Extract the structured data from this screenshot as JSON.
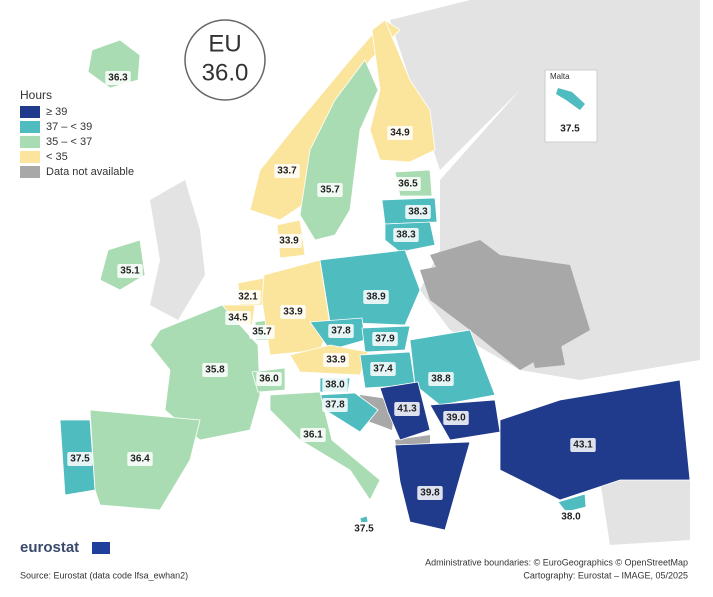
{
  "title": "EU",
  "eu_value": {
    "value": 36,
    "label": "36.0"
  },
  "legend": {
    "title": "Hours",
    "items": [
      {
        "label": "≥ 39",
        "color": "#213b8c"
      },
      {
        "label": "37 – < 39",
        "color": "#4fbcc0"
      },
      {
        "label": "35 – < 37",
        "color": "#a9dcb2"
      },
      {
        "label": "< 35",
        "color": "#fbe59c"
      },
      {
        "label": "Data not available",
        "color": "#a8a8a8"
      }
    ]
  },
  "regions": [
    {
      "value": 36.3,
      "color": "#a9dcb2"
    },
    {
      "value": 33.7,
      "color": "#fbe59c"
    },
    {
      "value": 35.7,
      "color": "#a9dcb2"
    },
    {
      "value": 34.9,
      "color": "#fbe59c"
    },
    {
      "value": 36.5,
      "color": "#a9dcb2"
    },
    {
      "value": 38.3,
      "color": "#4fbcc0"
    },
    {
      "value": 38.3,
      "color": "#4fbcc0"
    },
    {
      "value": 33.9,
      "color": "#fbe59c"
    },
    {
      "value": 35.1,
      "color": "#a9dcb2"
    },
    {
      "value": 32.1,
      "color": "#fbe59c"
    },
    {
      "value": 34.5,
      "color": "#fbe59c"
    },
    {
      "value": 35.7,
      "color": "#a9dcb2"
    },
    {
      "value": 33.9,
      "color": "#fbe59c"
    },
    {
      "value": 38.9,
      "color": "#4fbcc0"
    },
    {
      "value": 37.8,
      "color": "#4fbcc0"
    },
    {
      "value": 37.9,
      "color": "#4fbcc0"
    },
    {
      "value": 33.9,
      "color": "#fbe59c"
    },
    {
      "value": 37.4,
      "color": "#4fbcc0"
    },
    {
      "value": 38.8,
      "color": "#4fbcc0"
    },
    {
      "value": 35.8,
      "color": "#a9dcb2"
    },
    {
      "value": 36,
      "label": "36.0",
      "color": "#a9dcb2"
    },
    {
      "value": 38,
      "label": "38.0",
      "color": "#4fbcc0"
    },
    {
      "value": 37.8,
      "color": "#4fbcc0"
    },
    {
      "value": 41.3,
      "color": "#213b8c"
    },
    {
      "value": 39,
      "label": "39.0",
      "color": "#213b8c"
    },
    {
      "value": 36.1,
      "color": "#a9dcb2"
    },
    {
      "value": 37.5,
      "color": "#4fbcc0"
    },
    {
      "value": 36.4,
      "color": "#a9dcb2"
    },
    {
      "value": 39.8,
      "color": "#213b8c"
    },
    {
      "value": 43.1,
      "color": "#213b8c"
    },
    {
      "value": 38,
      "label": "38.0",
      "color": "#4fbcc0"
    },
    {
      "value": 37.5,
      "color": "#4fbcc0"
    }
  ],
  "inset": {
    "title": "Malta",
    "value": 37.5,
    "color": "#4fbcc0"
  },
  "logo": "eurostat",
  "source": "Source: Eurostat (data code lfsa_ewhan2)",
  "credits": [
    "Administrative boundaries: © EuroGeographics © OpenStreetMap",
    "Cartography: Eurostat – IMAGE, 05/2025"
  ]
}
